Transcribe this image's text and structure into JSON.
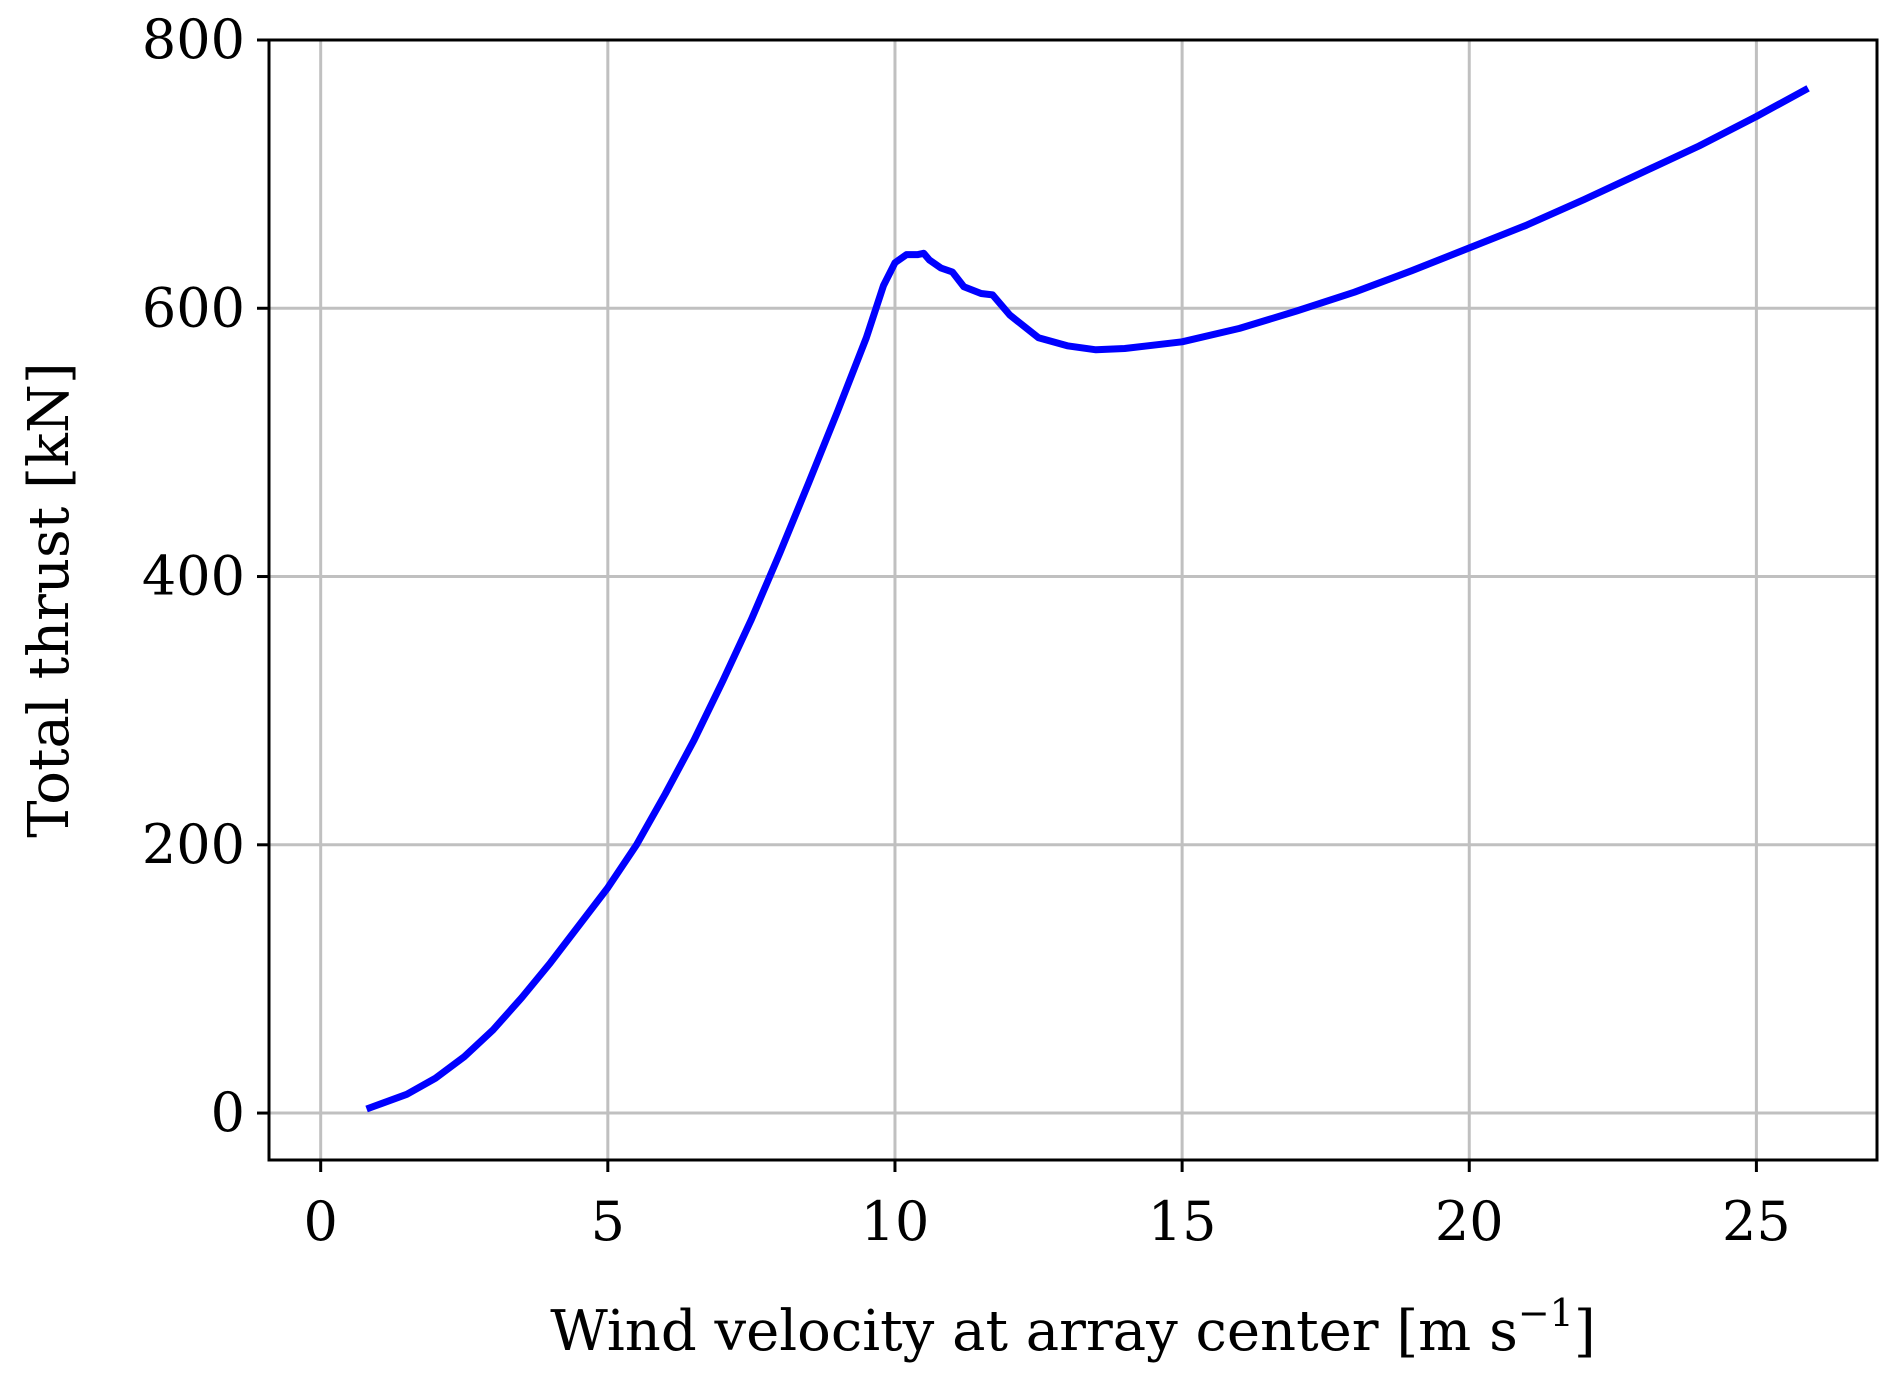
{
  "chart_data": {
    "type": "line",
    "title": "",
    "xlabel": "Wind velocity at array center [m s",
    "xlabel_superscript": "−1",
    "xlabel_close": "]",
    "ylabel": "Total thrust [kN]",
    "xlim": [
      -0.9,
      27.1
    ],
    "ylim": [
      -35,
      800
    ],
    "xticks": [
      0,
      5,
      10,
      15,
      20,
      25
    ],
    "yticks": [
      0,
      200,
      400,
      600,
      800
    ],
    "grid": true,
    "legend": "none",
    "series": [
      {
        "color": "#0000ff",
        "x": [
          0.8,
          1.5,
          2.0,
          2.5,
          3.0,
          3.5,
          4.0,
          4.5,
          5.0,
          5.5,
          6.0,
          6.5,
          7.0,
          7.5,
          8.0,
          8.5,
          9.0,
          9.5,
          9.8,
          10.0,
          10.2,
          10.4,
          10.5,
          10.6,
          10.8,
          11.0,
          11.2,
          11.5,
          11.7,
          12.0,
          12.5,
          13.0,
          13.5,
          14.0,
          15.0,
          16.0,
          17.0,
          18.0,
          19.0,
          20.0,
          21.0,
          22.0,
          23.0,
          24.0,
          25.0,
          25.9
        ],
        "y": [
          3,
          14,
          26,
          42,
          62,
          86,
          112,
          140,
          168,
          200,
          238,
          278,
          322,
          368,
          418,
          470,
          523,
          578,
          617,
          634,
          640,
          640,
          641,
          636,
          630,
          627,
          616,
          611,
          610,
          595,
          578,
          572,
          569,
          570,
          575,
          585,
          598,
          612,
          628,
          645,
          662,
          681,
          701,
          721,
          743,
          764
        ]
      }
    ]
  },
  "colors": {
    "line": "#0000ff",
    "grid": "#c0c0c0",
    "axes": "#000000"
  }
}
